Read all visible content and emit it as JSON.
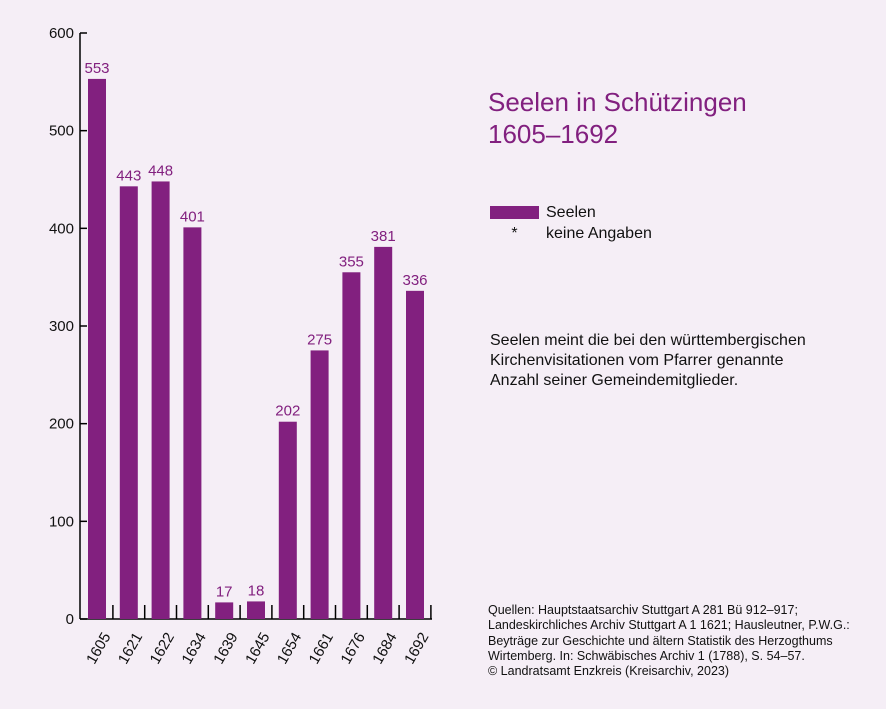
{
  "chart_data": {
    "type": "bar",
    "title_lines": [
      "Seelen in Schützingen",
      "1605–1692"
    ],
    "categories": [
      "1605",
      "1621",
      "1622",
      "1634",
      "1639",
      "1645",
      "1654",
      "1661",
      "1676",
      "1684",
      "1692"
    ],
    "series": [
      {
        "name": "Seelen",
        "values": [
          553,
          443,
          448,
          401,
          17,
          18,
          202,
          275,
          355,
          381,
          336
        ],
        "color": "#82207f"
      }
    ],
    "ylim": [
      0,
      600
    ],
    "yticks": [
      "0",
      "100",
      "200",
      "300",
      "400",
      "500",
      "600"
    ],
    "legend": [
      {
        "symbol": "swatch",
        "label": "Seelen"
      },
      {
        "symbol": "*",
        "label": "keine Angaben"
      }
    ],
    "grid": false,
    "legend_position": "right"
  },
  "note_lines": [
    "Seelen meint die bei den württembergischen",
    "Kirchenvisitationen vom Pfarrer genannte",
    "Anzahl seiner Gemeindemitglieder."
  ],
  "source_lines": [
    "Quellen: Hauptstaatsarchiv Stuttgart A 281 Bü 912–917;",
    "Landeskirchliches Archiv Stuttgart A 1 1621; Hausleutner, P.W.G.:",
    "Beyträge zur Geschichte und ältern Statistik des Herzogthums",
    "Wirtemberg. In: Schwäbisches Archiv 1 (1788), S. 54–57.",
    "© Landratsamt Enzkreis (Kreisarchiv, 2023)"
  ]
}
